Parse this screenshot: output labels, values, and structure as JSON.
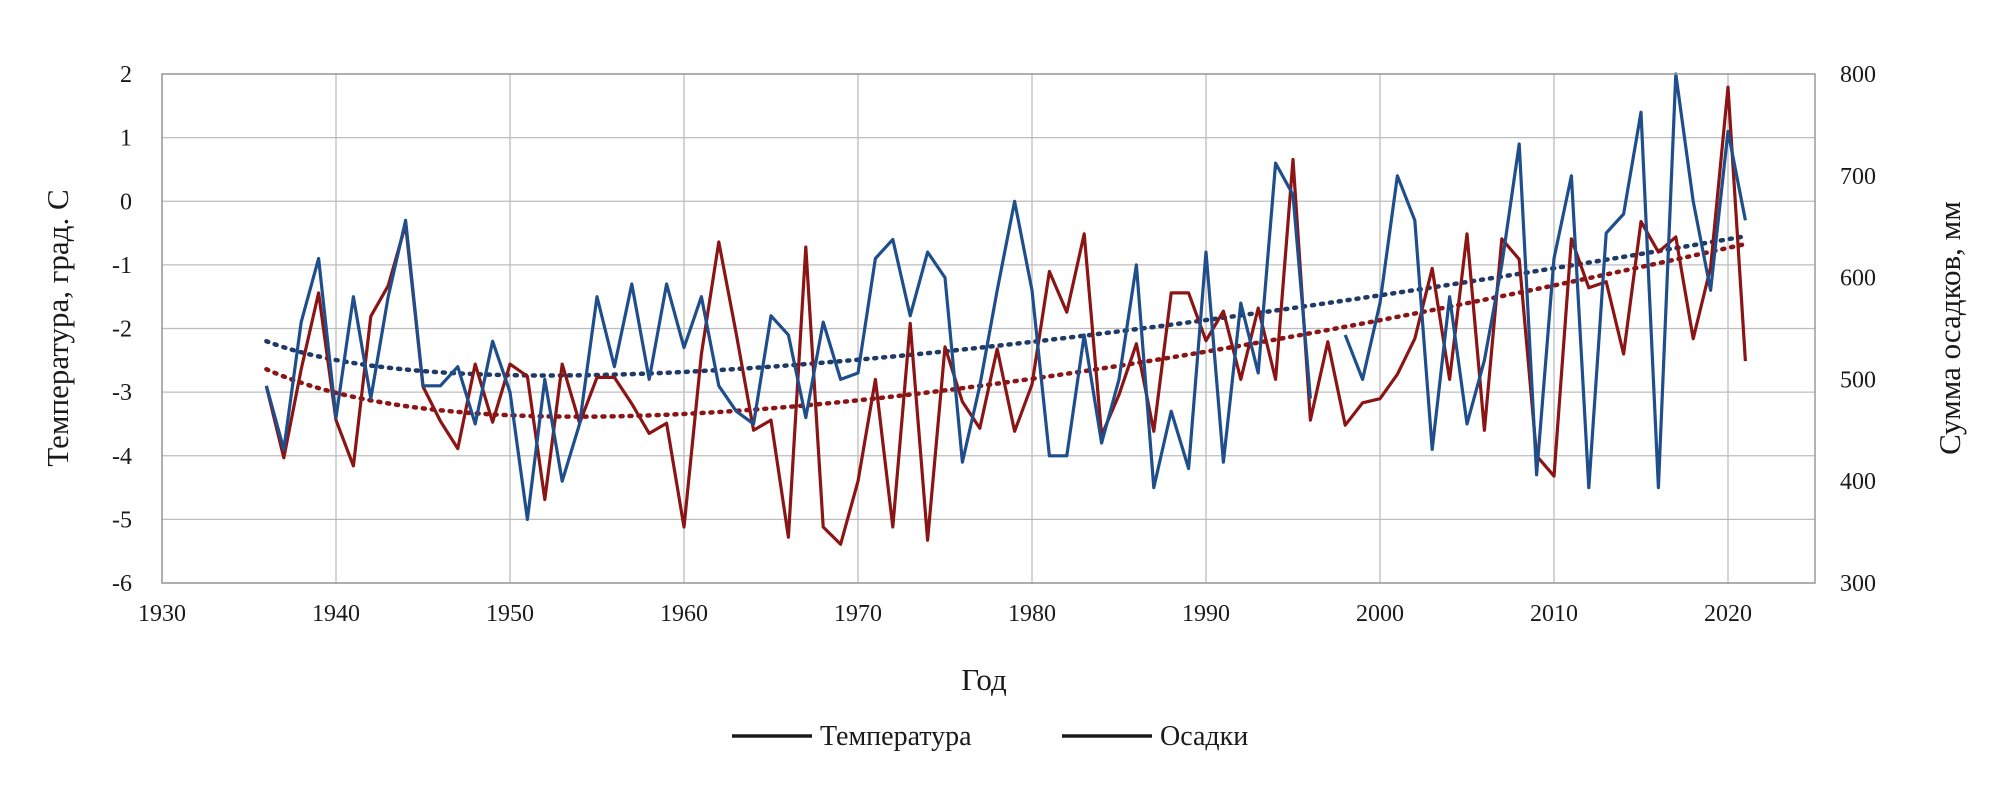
{
  "chart_data": {
    "type": "line",
    "title": "",
    "xlabel": "Год",
    "ylabel_left": "Температура, град. С",
    "ylabel_right": "Сумма осадков, мм",
    "xlim": [
      1930,
      2025
    ],
    "ylim_left": [
      -6,
      2
    ],
    "ylim_right": [
      300,
      800
    ],
    "xticks": [
      1930,
      1940,
      1950,
      1960,
      1970,
      1980,
      1990,
      2000,
      2010,
      2020
    ],
    "xtick_labels": [
      "1930",
      "1940",
      "1950",
      "1960",
      "1970",
      "1980",
      "1990",
      "2000",
      "2010",
      "2020"
    ],
    "yticks_left": [
      2,
      1,
      0,
      -1,
      -2,
      -3,
      -4,
      -5,
      -6
    ],
    "ytick_labels_left": [
      "2",
      "1",
      "0",
      "-1",
      "-2",
      "-3",
      "-4",
      "-5",
      "-6"
    ],
    "yticks_right": [
      800,
      700,
      600,
      500,
      400,
      300
    ],
    "ytick_labels_right": [
      "800",
      "700",
      "600",
      "500",
      "400",
      "300"
    ],
    "grid": "horizontal and vertical",
    "legend": "bottom",
    "series": [
      {
        "name": "Температура",
        "axis": "left",
        "color": "#1f4e8c",
        "x": [
          1936,
          1937,
          1938,
          1939,
          1940,
          1941,
          1942,
          1943,
          1944,
          1945,
          1946,
          1947,
          1948,
          1949,
          1950,
          1951,
          1952,
          1953,
          1954,
          1955,
          1956,
          1957,
          1958,
          1959,
          1960,
          1961,
          1962,
          1963,
          1964,
          1965,
          1966,
          1967,
          1968,
          1969,
          1970,
          1971,
          1972,
          1973,
          1974,
          1975,
          1976,
          1977,
          1978,
          1979,
          1980,
          1981,
          1982,
          1983,
          1984,
          1985,
          1986,
          1987,
          1988,
          1989,
          1990,
          1991,
          1992,
          1993,
          1994,
          1995,
          1996,
          1997,
          1998,
          1999,
          2000,
          2001,
          2002,
          2003,
          2004,
          2005,
          2006,
          2007,
          2008,
          2009,
          2010,
          2011,
          2012,
          2013,
          2014,
          2015,
          2016,
          2017,
          2018,
          2019,
          2020,
          2021
        ],
        "values": [
          -2.9,
          -3.9,
          -1.9,
          -0.9,
          -3.4,
          -1.5,
          -3.1,
          -1.5,
          -0.3,
          -2.9,
          -2.9,
          -2.6,
          -3.5,
          -2.2,
          -3.0,
          -5.0,
          -2.8,
          -4.4,
          -3.5,
          -1.5,
          -2.6,
          -1.3,
          -2.8,
          -1.3,
          -2.3,
          -1.5,
          -2.9,
          -3.3,
          -3.5,
          -1.8,
          -2.1,
          -3.4,
          -1.9,
          -2.8,
          -2.7,
          -0.9,
          -0.6,
          -1.8,
          -0.8,
          -1.2,
          -4.1,
          -2.9,
          -1.4,
          0.0,
          -1.4,
          -4.0,
          -4.0,
          -2.1,
          -3.8,
          -2.8,
          -1.0,
          -4.5,
          -3.3,
          -4.2,
          -0.8,
          -4.1,
          -1.6,
          -2.7,
          0.6,
          0.1,
          -3.1,
          null,
          -2.1,
          -2.8,
          -1.6,
          0.4,
          -0.3,
          -3.9,
          -1.5,
          -3.5,
          -2.5,
          -1.0,
          0.9,
          -4.3,
          -0.9,
          0.4,
          -4.5,
          -0.5,
          -0.2,
          1.4,
          -4.5,
          2.0,
          0.0,
          -1.4,
          1.1,
          -0.3
        ]
      },
      {
        "name": "Осадки",
        "axis": "right",
        "color": "#8b1515",
        "x": [
          1936,
          1937,
          1938,
          1939,
          1940,
          1941,
          1942,
          1943,
          1944,
          1945,
          1946,
          1947,
          1948,
          1949,
          1950,
          1951,
          1952,
          1953,
          1954,
          1955,
          1956,
          1957,
          1958,
          1959,
          1960,
          1961,
          1962,
          1963,
          1964,
          1965,
          1966,
          1967,
          1968,
          1969,
          1970,
          1971,
          1972,
          1973,
          1974,
          1975,
          1976,
          1977,
          1978,
          1979,
          1980,
          1981,
          1982,
          1983,
          1984,
          1985,
          1986,
          1987,
          1988,
          1989,
          1990,
          1991,
          1992,
          1993,
          1994,
          1995,
          1996,
          1997,
          1998,
          1999,
          2000,
          2001,
          2002,
          2003,
          2004,
          2005,
          2006,
          2007,
          2008,
          2009,
          2010,
          2011,
          2012,
          2013,
          2014,
          2015,
          2016,
          2017,
          2018,
          2019,
          2020,
          2021
        ],
        "values": [
          493,
          423,
          510,
          585,
          460,
          415,
          562,
          592,
          652,
          493,
          459,
          432,
          515,
          458,
          515,
          503,
          382,
          515,
          457,
          502,
          502,
          476,
          447,
          457,
          355,
          525,
          635,
          545,
          450,
          460,
          345,
          630,
          355,
          338,
          400,
          500,
          355,
          555,
          342,
          532,
          478,
          452,
          530,
          449,
          495,
          606,
          566,
          643,
          445,
          485,
          535,
          449,
          585,
          585,
          538,
          567,
          500,
          570,
          500,
          716,
          460,
          537,
          455,
          477,
          481,
          505,
          540,
          609,
          500,
          643,
          450,
          638,
          618,
          425,
          405,
          638,
          590,
          596,
          525,
          655,
          625,
          640,
          540,
          610,
          787,
          518
        ]
      }
    ],
    "trendlines": [
      {
        "series": "Температура",
        "style": "dotted",
        "color": "#1f3a66",
        "start": [
          1936,
          -2.2
        ],
        "mid": [
          1965,
          -2.6
        ],
        "end": [
          2021,
          -0.55
        ]
      },
      {
        "series": "Осадки",
        "style": "dotted",
        "color": "#8b1515",
        "start": [
          1936,
          510
        ],
        "mid": [
          1966,
          473
        ],
        "end": [
          2021,
          633
        ]
      }
    ]
  },
  "legend": {
    "items": [
      {
        "label": "Температура",
        "color": "#1a1a1a"
      },
      {
        "label": "Осадки",
        "color": "#1a1a1a"
      }
    ]
  }
}
